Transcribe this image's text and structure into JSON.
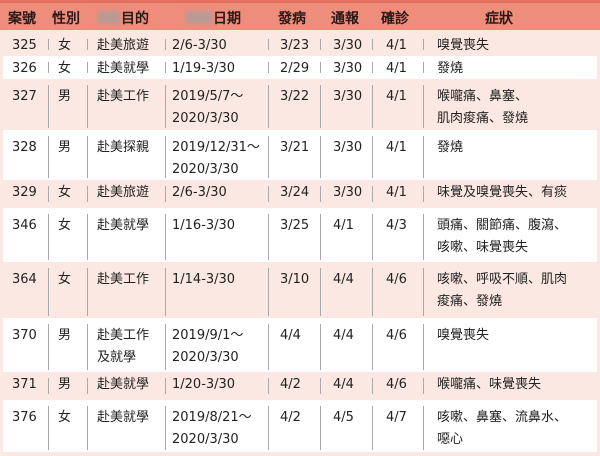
{
  "header": {
    "case": "案號",
    "sex": "性別",
    "purpose": "目的",
    "dates": "日期",
    "onset": "發病",
    "reported": "通報",
    "confirmed": "確診",
    "symptoms": "症狀"
  },
  "colors": {
    "header_bg": "#ef8d7c",
    "row_pink": "#fbe8e2",
    "row_white": "#ffffff"
  },
  "rows": [
    {
      "case": "325",
      "sex": "女",
      "purpose": "赴美旅遊",
      "dates": "2/6-3/30",
      "onset": "3/23",
      "reported": "3/30",
      "confirmed": "4/1",
      "symptoms": "嗅覺喪失"
    },
    {
      "case": "326",
      "sex": "女",
      "purpose": "赴美就學",
      "dates": "1/19-3/30",
      "onset": "2/29",
      "reported": "3/30",
      "confirmed": "4/1",
      "symptoms": "發燒"
    },
    {
      "case": "327",
      "sex": "男",
      "purpose": "赴美工作",
      "dates": "2019/5/7～\n2020/3/30",
      "onset": "3/22",
      "reported": "3/30",
      "confirmed": "4/1",
      "symptoms": "喉嚨痛、鼻塞、\n肌肉痠痛、發燒"
    },
    {
      "case": "328",
      "sex": "男",
      "purpose": "赴美探親",
      "dates": "2019/12/31～\n2020/3/30",
      "onset": "3/21",
      "reported": "3/30",
      "confirmed": "4/1",
      "symptoms": "發燒"
    },
    {
      "case": "329",
      "sex": "女",
      "purpose": "赴美旅遊",
      "dates": "2/6-3/30",
      "onset": "3/24",
      "reported": "3/30",
      "confirmed": "4/1",
      "symptoms": "味覺及嗅覺喪失、有痰"
    },
    {
      "case": "346",
      "sex": "女",
      "purpose": "赴美就學",
      "dates": "1/16-3/30",
      "onset": "3/25",
      "reported": "4/1",
      "confirmed": "4/3",
      "symptoms": "頭痛、關節痛、腹瀉、\n咳嗽、味覺喪失"
    },
    {
      "case": "364",
      "sex": "女",
      "purpose": "赴美工作",
      "dates": "1/14-3/30",
      "onset": "3/10",
      "reported": "4/4",
      "confirmed": "4/6",
      "symptoms": "咳嗽、呼吸不順、肌肉\n痠痛、發燒"
    },
    {
      "case": "370",
      "sex": "男",
      "purpose": "赴美工作\n及就學",
      "dates": "2019/9/1～\n2020/3/30",
      "onset": "4/4",
      "reported": "4/4",
      "confirmed": "4/6",
      "symptoms": "嗅覺喪失"
    },
    {
      "case": "371",
      "sex": "男",
      "purpose": "赴美就學",
      "dates": "1/20-3/30",
      "onset": "4/2",
      "reported": "4/4",
      "confirmed": "4/6",
      "symptoms": "喉嚨痛、味覺喪失"
    },
    {
      "case": "376",
      "sex": "女",
      "purpose": "赴美就學",
      "dates": "2019/8/21～\n2020/3/30",
      "onset": "4/2",
      "reported": "4/5",
      "confirmed": "4/7",
      "symptoms": "咳嗽、鼻塞、流鼻水、\n噁心"
    }
  ]
}
